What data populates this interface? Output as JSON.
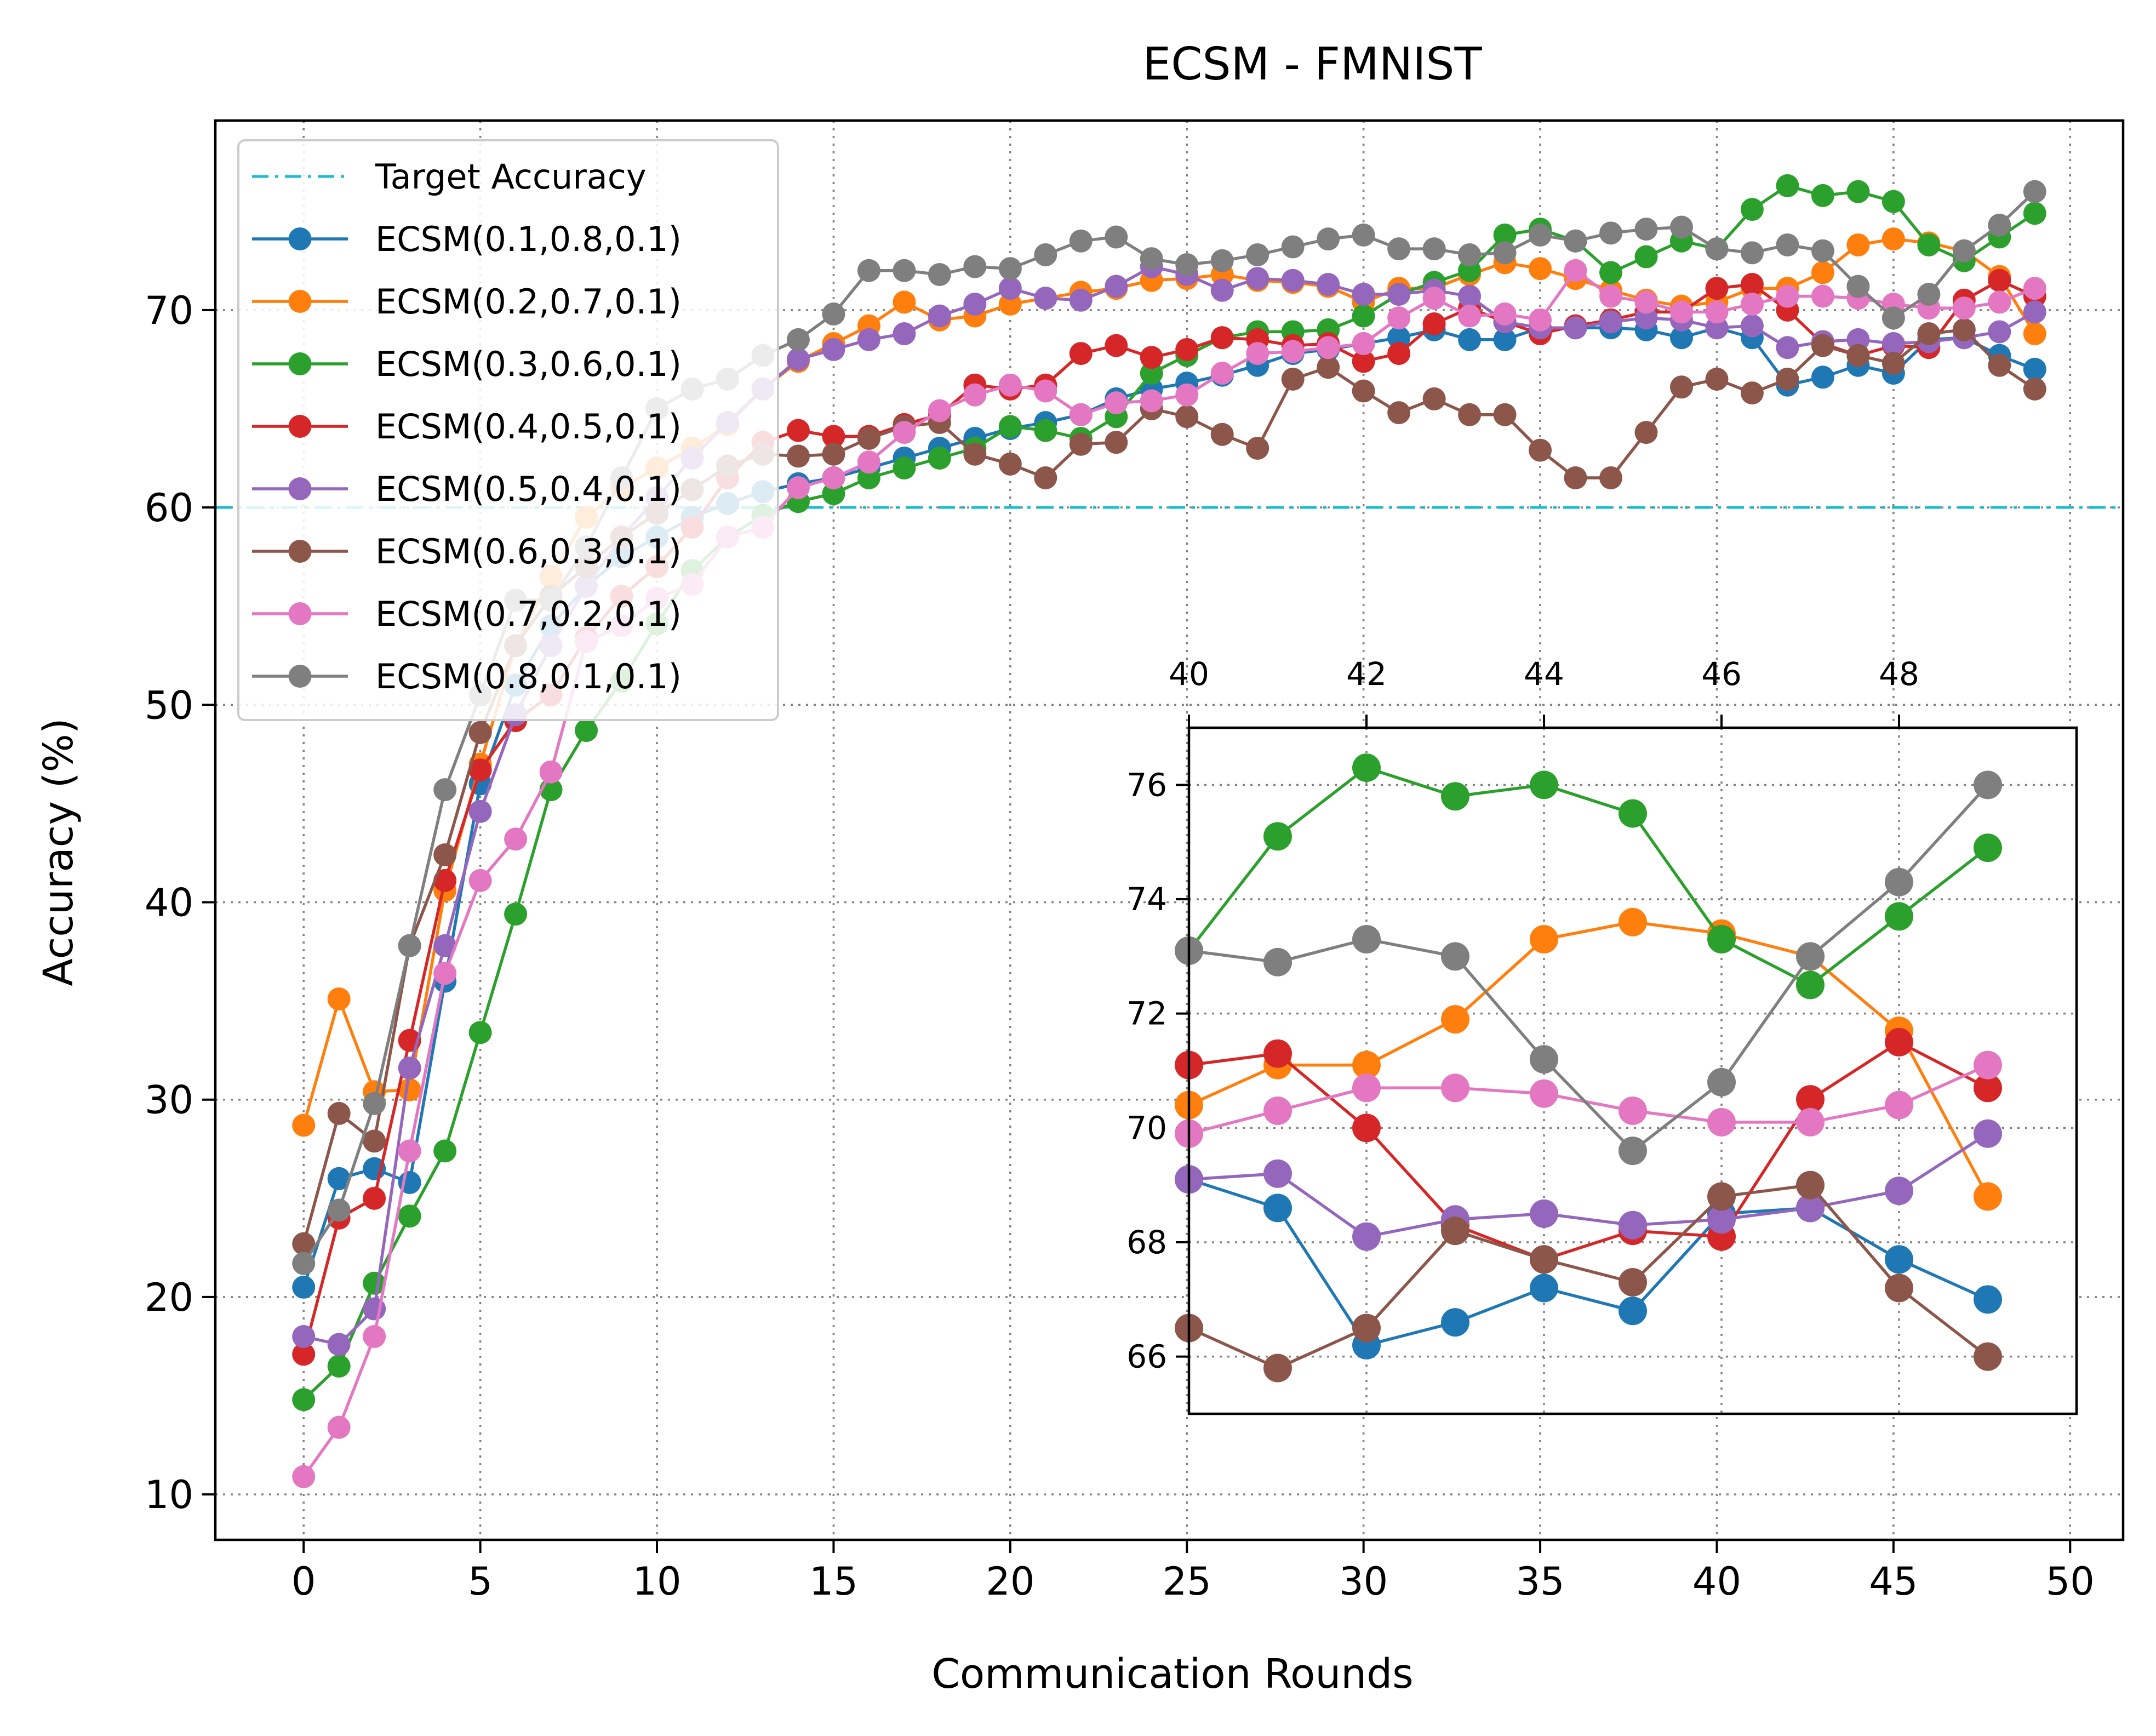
{
  "chart_data": {
    "type": "line",
    "title": "ECSM - FMNIST",
    "xlabel": "Communication Rounds",
    "ylabel": "Accuracy (%)",
    "xlim": [
      -2.5,
      51.5
    ],
    "ylim": [
      7.7,
      79.6
    ],
    "xticks": [
      0,
      5,
      10,
      15,
      20,
      25,
      30,
      35,
      40,
      45,
      50
    ],
    "yticks": [
      10,
      20,
      30,
      40,
      50,
      60,
      70
    ],
    "grid": true,
    "legend_position": "upper-left",
    "target_line": {
      "label": "Target Accuracy",
      "value": 60,
      "color": "#17becf"
    },
    "x": [
      0,
      1,
      2,
      3,
      4,
      5,
      6,
      7,
      8,
      9,
      10,
      11,
      12,
      13,
      14,
      15,
      16,
      17,
      18,
      19,
      20,
      21,
      22,
      23,
      24,
      25,
      26,
      27,
      28,
      29,
      30,
      31,
      32,
      33,
      34,
      35,
      36,
      37,
      38,
      39,
      40,
      41,
      42,
      43,
      44,
      45,
      46,
      47,
      48,
      49
    ],
    "series": [
      {
        "name": "ECSM(0.1,0.8,0.1)",
        "color": "#1f77b4",
        "values": [
          20.5,
          26.0,
          26.5,
          25.8,
          36.0,
          46.0,
          51.0,
          54.0,
          56.0,
          57.5,
          58.5,
          59.5,
          60.2,
          60.8,
          61.2,
          61.5,
          62.0,
          62.5,
          63.0,
          63.5,
          64.0,
          64.3,
          64.7,
          65.5,
          66.0,
          66.3,
          66.7,
          67.2,
          67.8,
          68.0,
          68.3,
          68.6,
          69.0,
          68.5,
          68.5,
          69.1,
          69.1,
          69.1,
          69.0,
          68.6,
          69.1,
          68.6,
          66.2,
          66.6,
          67.2,
          66.8,
          68.5,
          68.6,
          67.7,
          67.0
        ]
      },
      {
        "name": "ECSM(0.2,0.7,0.1)",
        "color": "#ff7f0e",
        "values": [
          28.7,
          35.1,
          30.4,
          30.5,
          40.6,
          47.0,
          53.0,
          56.5,
          59.5,
          61.0,
          62.0,
          63.0,
          64.2,
          66.0,
          67.4,
          68.3,
          69.2,
          70.4,
          69.5,
          69.7,
          70.3,
          70.6,
          70.9,
          71.1,
          71.5,
          71.6,
          71.8,
          71.5,
          71.4,
          71.2,
          70.4,
          71.1,
          71.1,
          71.8,
          72.4,
          72.1,
          71.6,
          71.0,
          70.5,
          70.2,
          70.4,
          71.1,
          71.1,
          71.9,
          73.3,
          73.6,
          73.4,
          73.0,
          71.7,
          68.8
        ]
      },
      {
        "name": "ECSM(0.3,0.6,0.1)",
        "color": "#2ca02c",
        "values": [
          14.8,
          16.5,
          20.7,
          24.1,
          27.4,
          33.4,
          39.4,
          45.7,
          48.7,
          51.2,
          54.1,
          56.8,
          58.5,
          59.6,
          60.3,
          60.7,
          61.5,
          62.0,
          62.5,
          63.0,
          64.1,
          63.9,
          63.5,
          64.6,
          66.8,
          67.7,
          68.6,
          68.9,
          68.9,
          69.0,
          69.7,
          70.8,
          71.4,
          72.0,
          73.8,
          74.1,
          73.5,
          71.9,
          72.7,
          73.5,
          73.1,
          75.1,
          76.3,
          75.8,
          76.0,
          75.5,
          73.3,
          72.5,
          73.7,
          74.9
        ]
      },
      {
        "name": "ECSM(0.4,0.5,0.1)",
        "color": "#d62728",
        "values": [
          17.1,
          24.0,
          25.0,
          33.0,
          41.1,
          46.7,
          49.2,
          50.5,
          53.4,
          55.5,
          57.0,
          59.0,
          61.5,
          63.3,
          63.9,
          63.6,
          63.6,
          64.2,
          64.7,
          66.2,
          66.0,
          66.2,
          67.8,
          68.2,
          67.6,
          68.0,
          68.6,
          68.5,
          68.2,
          68.3,
          67.4,
          67.8,
          69.3,
          70.1,
          69.4,
          68.8,
          69.2,
          69.5,
          69.9,
          69.9,
          71.1,
          71.3,
          70.0,
          68.3,
          67.7,
          68.2,
          68.1,
          70.5,
          71.5,
          70.7
        ]
      },
      {
        "name": "ECSM(0.5,0.4,0.1)",
        "color": "#9467bd",
        "values": [
          18.0,
          17.6,
          19.4,
          31.6,
          37.8,
          44.6,
          49.5,
          53.0,
          56.0,
          58.5,
          60.5,
          62.5,
          64.3,
          66.0,
          67.5,
          68.0,
          68.5,
          68.8,
          69.7,
          70.3,
          71.1,
          70.6,
          70.5,
          71.2,
          72.2,
          71.8,
          71.0,
          71.6,
          71.5,
          71.3,
          70.8,
          70.8,
          71.0,
          70.7,
          69.4,
          69.1,
          69.1,
          69.4,
          69.6,
          69.5,
          69.1,
          69.2,
          68.1,
          68.4,
          68.5,
          68.3,
          68.4,
          68.6,
          68.9,
          69.9
        ]
      },
      {
        "name": "ECSM(0.6,0.3,0.1)",
        "color": "#8c564b",
        "values": [
          22.7,
          29.3,
          27.9,
          37.8,
          42.4,
          48.6,
          53.0,
          55.5,
          57.0,
          58.5,
          59.7,
          60.9,
          62.1,
          62.7,
          62.6,
          62.7,
          63.5,
          64.1,
          64.3,
          62.7,
          62.2,
          61.5,
          63.2,
          63.3,
          65.0,
          64.6,
          63.7,
          63.0,
          66.5,
          67.1,
          65.9,
          64.8,
          65.5,
          64.7,
          64.7,
          62.9,
          61.5,
          61.5,
          63.8,
          66.1,
          66.5,
          65.8,
          66.5,
          68.2,
          67.7,
          67.3,
          68.8,
          69.0,
          67.2,
          66.0
        ]
      },
      {
        "name": "ECSM(0.7,0.2,0.1)",
        "color": "#e377c2",
        "values": [
          10.9,
          13.4,
          18.0,
          27.4,
          36.4,
          41.1,
          43.2,
          46.6,
          53.2,
          54.0,
          55.4,
          56.1,
          58.5,
          59.0,
          61.0,
          61.5,
          62.3,
          63.8,
          64.9,
          65.7,
          66.2,
          65.9,
          64.7,
          65.3,
          65.4,
          65.7,
          66.8,
          67.8,
          67.9,
          68.1,
          68.3,
          69.6,
          70.6,
          69.7,
          69.8,
          69.5,
          72.0,
          70.7,
          70.4,
          69.9,
          69.9,
          70.3,
          70.7,
          70.7,
          70.6,
          70.3,
          70.1,
          70.1,
          70.4,
          71.1
        ]
      },
      {
        "name": "ECSM(0.8,0.1,0.1)",
        "color": "#7f7f7f",
        "values": [
          21.7,
          24.4,
          29.8,
          37.8,
          45.7,
          50.5,
          55.3,
          55.3,
          58.0,
          61.5,
          65.0,
          66.0,
          66.5,
          67.7,
          68.5,
          69.8,
          72.0,
          72.0,
          71.8,
          72.2,
          72.1,
          72.8,
          73.5,
          73.7,
          72.6,
          72.3,
          72.5,
          72.8,
          73.2,
          73.6,
          73.8,
          73.1,
          73.1,
          72.8,
          72.9,
          73.8,
          73.5,
          73.9,
          74.1,
          74.2,
          73.1,
          72.9,
          73.3,
          73.0,
          71.2,
          69.6,
          70.8,
          73.0,
          74.3,
          76.0
        ]
      }
    ],
    "inset": {
      "xlim": [
        40,
        50
      ],
      "ylim": [
        65,
        77
      ],
      "xticks": [
        40,
        42,
        44,
        46,
        48
      ],
      "yticks": [
        66,
        68,
        70,
        72,
        74,
        76
      ],
      "x": [
        40,
        41,
        42,
        43,
        44,
        45,
        46,
        47,
        48,
        49
      ],
      "series": [
        {
          "name": "ECSM(0.1,0.8,0.1)",
          "values": [
            69.1,
            68.6,
            66.2,
            66.6,
            67.2,
            66.8,
            68.5,
            68.6,
            67.7,
            67.0
          ]
        },
        {
          "name": "ECSM(0.2,0.7,0.1)",
          "values": [
            70.4,
            71.1,
            71.1,
            71.9,
            73.3,
            73.6,
            73.4,
            73.0,
            71.7,
            68.8
          ]
        },
        {
          "name": "ECSM(0.3,0.6,0.1)",
          "values": [
            73.1,
            75.1,
            76.3,
            75.8,
            76.0,
            75.5,
            73.3,
            72.5,
            73.7,
            74.9
          ]
        },
        {
          "name": "ECSM(0.4,0.5,0.1)",
          "values": [
            71.1,
            71.3,
            70.0,
            68.3,
            67.7,
            68.2,
            68.1,
            70.5,
            71.5,
            70.7
          ]
        },
        {
          "name": "ECSM(0.5,0.4,0.1)",
          "values": [
            69.1,
            69.2,
            68.1,
            68.4,
            68.5,
            68.3,
            68.4,
            68.6,
            68.9,
            69.9
          ]
        },
        {
          "name": "ECSM(0.6,0.3,0.1)",
          "values": [
            66.5,
            65.8,
            66.5,
            68.2,
            67.7,
            67.3,
            68.8,
            69.0,
            67.2,
            66.0
          ]
        },
        {
          "name": "ECSM(0.7,0.2,0.1)",
          "values": [
            69.9,
            70.3,
            70.7,
            70.7,
            70.6,
            70.3,
            70.1,
            70.1,
            70.4,
            71.1
          ]
        },
        {
          "name": "ECSM(0.8,0.1,0.1)",
          "values": [
            73.1,
            72.9,
            73.3,
            73.0,
            71.2,
            69.6,
            70.8,
            73.0,
            74.3,
            76.0
          ]
        }
      ]
    }
  }
}
